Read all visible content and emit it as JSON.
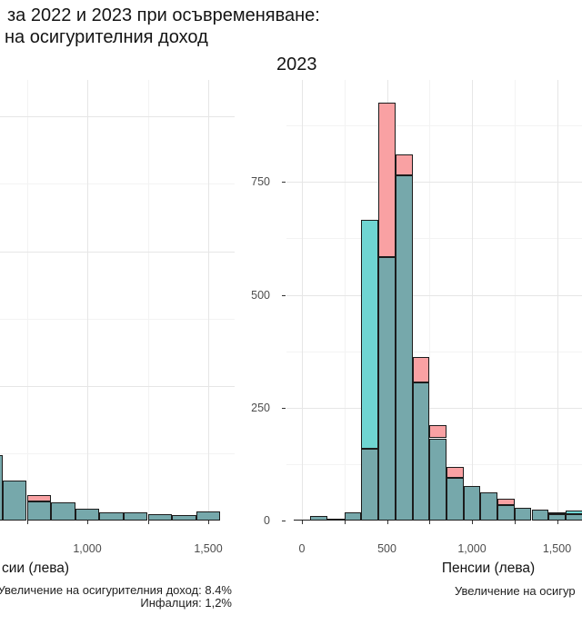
{
  "title": {
    "line1": "за 2022 и 2023 при осъвременяване:",
    "line2": "на осигурителния доход"
  },
  "facet": {
    "right_label": "2023"
  },
  "axis_titles": {
    "left_visible": "сии (лева)",
    "right": "Пенсии (лева)"
  },
  "captions": {
    "left_line1": "Увеличение на осигурителния доход: 8.4%",
    "left_line2": "Инфалция: 1,2%",
    "right_line1": "Увеличение на осигур"
  },
  "colors": {
    "cyan": "#6FD5D2",
    "pink": "#F9A1A3",
    "overlap": "#76A8AB",
    "stroke": "#1C1C1C",
    "axis_text": "#4D4D4D",
    "grid_major": "#E6E6E6",
    "grid_minor": "#F3F3F3"
  },
  "chart_data": {
    "type": "bar",
    "subtype": "overlaid-histograms",
    "description": "Two overlapping semi-transparent histograms (cyan and pink series) of pension amounts in leva; where both overlap the fill renders teal. Left panel (cropped at image edge) shows the right tail of the 2022-style distribution; right panel is labelled 2023.",
    "x_axis_label": "Пенсии (лева)",
    "bin_width": 100,
    "grid": "on",
    "legend": "not visible (cropped)",
    "panels": [
      {
        "id": "left",
        "facet_label": "",
        "y_axis_labels_visible": false,
        "x_range_visible": [
          640,
          1630
        ],
        "y_range": [
          0,
          1620
        ],
        "grid": {
          "x_major": [
            1000,
            1500
          ],
          "x_minor": [
            750,
            1250
          ],
          "y_major": [
            500,
            1000,
            1500
          ],
          "y_minor": [
            250,
            750,
            1250
          ]
        },
        "x_labels": [
          {
            "v": 1000,
            "t": "1,000"
          },
          {
            "v": 1500,
            "t": "1,500"
          }
        ],
        "y_labels": [],
        "bins": [
          {
            "x": 600,
            "cyan": 242,
            "pink": 242
          },
          {
            "x": 700,
            "cyan": 147,
            "pink": 147
          },
          {
            "x": 800,
            "cyan": 70,
            "pink": 93
          },
          {
            "x": 900,
            "cyan": 66,
            "pink": 66
          },
          {
            "x": 1000,
            "cyan": 43,
            "pink": 43
          },
          {
            "x": 1100,
            "cyan": 32,
            "pink": 32
          },
          {
            "x": 1200,
            "cyan": 29,
            "pink": 29
          },
          {
            "x": 1300,
            "cyan": 25,
            "pink": 25
          },
          {
            "x": 1400,
            "cyan": 19,
            "pink": 19
          },
          {
            "x": 1500,
            "cyan": 34,
            "pink": 34
          }
        ]
      },
      {
        "id": "right",
        "facet_label": "2023",
        "y_axis_labels_visible": true,
        "x_range_visible": [
          -80,
          1620
        ],
        "y_range": [
          0,
          975
        ],
        "grid": {
          "x_major": [
            0,
            500,
            1000,
            1500
          ],
          "x_minor": [
            250,
            750,
            1250
          ],
          "y_major": [
            250,
            500,
            750
          ],
          "y_minor": [
            125,
            375,
            625,
            875
          ]
        },
        "x_labels": [
          {
            "v": 0,
            "t": "0"
          },
          {
            "v": 500,
            "t": "500"
          },
          {
            "v": 1000,
            "t": "1,000"
          },
          {
            "v": 1500,
            "t": "1,500"
          }
        ],
        "y_labels": [
          {
            "v": 0,
            "t": "0"
          },
          {
            "v": 250,
            "t": "250"
          },
          {
            "v": 500,
            "t": "500"
          },
          {
            "v": 750,
            "t": "750"
          }
        ],
        "bins": [
          {
            "x": 0,
            "cyan": 3,
            "pink": 3
          },
          {
            "x": 100,
            "cyan": 11,
            "pink": 11
          },
          {
            "x": 200,
            "cyan": 4,
            "pink": 4
          },
          {
            "x": 300,
            "cyan": 18,
            "pink": 18
          },
          {
            "x": 400,
            "cyan": 667,
            "pink": 160
          },
          {
            "x": 500,
            "cyan": 584,
            "pink": 925
          },
          {
            "x": 600,
            "cyan": 765,
            "pink": 810
          },
          {
            "x": 700,
            "cyan": 305,
            "pink": 363
          },
          {
            "x": 800,
            "cyan": 182,
            "pink": 212
          },
          {
            "x": 900,
            "cyan": 95,
            "pink": 118
          },
          {
            "x": 1000,
            "cyan": 77,
            "pink": 77
          },
          {
            "x": 1100,
            "cyan": 62,
            "pink": 62
          },
          {
            "x": 1200,
            "cyan": 34,
            "pink": 48
          },
          {
            "x": 1300,
            "cyan": 29,
            "pink": 29
          },
          {
            "x": 1400,
            "cyan": 25,
            "pink": 25
          },
          {
            "x": 1500,
            "cyan": 15,
            "pink": 19
          },
          {
            "x": 1600,
            "cyan": 23,
            "pink": 14
          }
        ]
      }
    ]
  }
}
